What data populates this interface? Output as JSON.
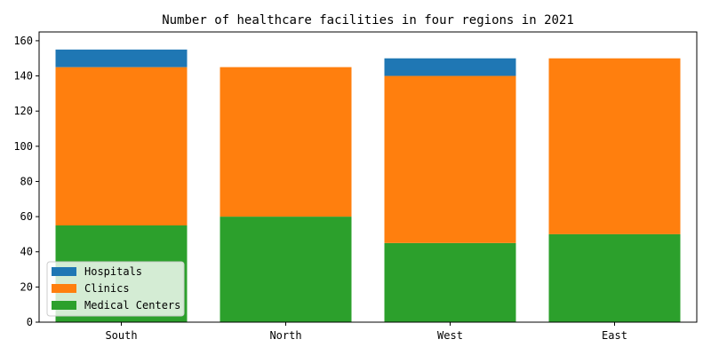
{
  "chart_data": {
    "type": "bar",
    "stacked": true,
    "title": "Number of healthcare facilities in four regions in 2021",
    "xlabel": "",
    "ylabel": "",
    "categories": [
      "South",
      "North",
      "West",
      "East"
    ],
    "series": [
      {
        "name": "Medical Centers",
        "color": "#2ca02c",
        "values": [
          55,
          60,
          45,
          50
        ]
      },
      {
        "name": "Clinics",
        "color": "#ff7f0e",
        "values": [
          90,
          85,
          95,
          100
        ]
      },
      {
        "name": "Hospitals",
        "color": "#1f77b4",
        "values": [
          10,
          0,
          10,
          0
        ]
      }
    ],
    "ylim": [
      0,
      165
    ],
    "yticks": [
      0,
      20,
      40,
      60,
      80,
      100,
      120,
      140,
      160
    ],
    "legend_order": [
      "Hospitals",
      "Clinics",
      "Medical Centers"
    ],
    "legend_position": "lower-left",
    "grid": false
  }
}
